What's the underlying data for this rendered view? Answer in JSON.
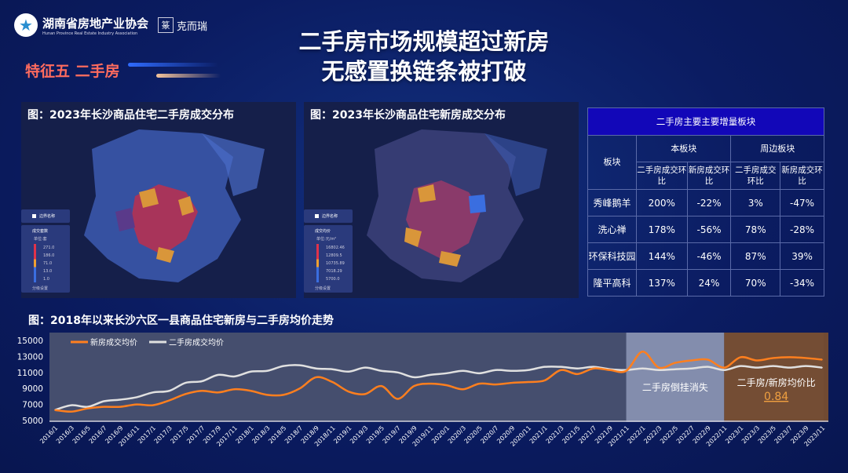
{
  "header": {
    "org_name": "湖南省房地产业协会",
    "org_name_en": "Hunan Province Real Estate Industry Association",
    "partner_seal": "䅀",
    "partner_name": "克而瑞",
    "feature": "特征五  二手房",
    "title_line1": "二手房市场规模超过新房",
    "title_line2": "无感置换链条被打破"
  },
  "maps": [
    {
      "title": "图：2023年长沙商品住宅二手房成交分布",
      "legend": {
        "toggle": "边界名称",
        "metric": "成交套数",
        "unit": "单位:套",
        "values": [
          "271.0",
          "186.0",
          "71.0",
          "13.0",
          "1.0"
        ],
        "footer": "分级设置"
      }
    },
    {
      "title": "图：2023年长沙商品住宅新房成交分布",
      "legend": {
        "toggle": "边界名称",
        "metric": "成交均价",
        "unit": "单位:元/m²",
        "values": [
          "16802.46",
          "12809.5",
          "10735.89",
          "7018.29",
          "5700.0"
        ],
        "footer": "分级设置"
      }
    }
  ],
  "table": {
    "caption": "二手房主要主要增量板块",
    "col_block": "板块",
    "group1": "本板块",
    "group2": "周边板块",
    "sub": [
      "二手房成交环比",
      "新房成交环比",
      "二手房成交环比",
      "新房成交环比"
    ],
    "rows": [
      [
        "秀峰鹅羊",
        "200%",
        "-22%",
        "3%",
        "-47%"
      ],
      [
        "洗心禅",
        "178%",
        "-56%",
        "78%",
        "-28%"
      ],
      [
        "环保科技园",
        "144%",
        "-46%",
        "87%",
        "39%"
      ],
      [
        "隆平高科",
        "137%",
        "24%",
        "70%",
        "-34%"
      ]
    ]
  },
  "chart_data": {
    "type": "line",
    "title": "图：2018年以来长沙六区一县商品住宅新房与二手房均价走势",
    "xlabel": "",
    "ylabel": "",
    "ylim": [
      5000,
      15000
    ],
    "yticks": [
      "15000",
      "13000",
      "11000",
      "9000",
      "7000",
      "5000"
    ],
    "legend_placement": "top-left",
    "grid": false,
    "categories": [
      "2016/1",
      "2016/3",
      "2016/5",
      "2016/7",
      "2016/9",
      "2016/11",
      "2017/1",
      "2017/3",
      "2017/5",
      "2017/7",
      "2017/9",
      "2017/11",
      "2018/1",
      "2018/3",
      "2018/5",
      "2018/7",
      "2018/9",
      "2018/11",
      "2019/1",
      "2019/3",
      "2019/5",
      "2019/7",
      "2019/9",
      "2019/11",
      "2020/1",
      "2020/3",
      "2020/5",
      "2020/7",
      "2020/9",
      "2020/11",
      "2021/1",
      "2021/3",
      "2021/5",
      "2021/7",
      "2021/9",
      "2021/11",
      "2022/1",
      "2022/3",
      "2022/5",
      "2022/7",
      "2022/9",
      "2022/11",
      "2023/1",
      "2023/3",
      "2023/5",
      "2023/7",
      "2023/9",
      "2023/11"
    ],
    "series": [
      {
        "name": "新房成交均价",
        "color": "#ff7f1e",
        "values": [
          6300,
          6100,
          6500,
          6700,
          6700,
          7000,
          6900,
          7500,
          8300,
          8700,
          8500,
          8900,
          8700,
          8200,
          8200,
          9000,
          10400,
          9800,
          8600,
          8300,
          9300,
          7700,
          9300,
          9600,
          9400,
          8900,
          9600,
          9500,
          9700,
          9800,
          10000,
          11300,
          10800,
          11500,
          11300,
          11200,
          13600,
          11600,
          12200,
          12500,
          12600,
          11600,
          12900,
          12500,
          12800,
          12900,
          12800,
          12600
        ]
      },
      {
        "name": "二手房成交均价",
        "color": "#e0e0e0",
        "values": [
          6300,
          6900,
          6700,
          7400,
          7600,
          7900,
          8500,
          8700,
          9700,
          9900,
          10700,
          10500,
          11100,
          11200,
          11800,
          11900,
          11500,
          11400,
          11100,
          11600,
          11200,
          11000,
          10400,
          10700,
          10900,
          11200,
          10900,
          11300,
          11200,
          11300,
          11700,
          11700,
          11500,
          11700,
          11400,
          11300,
          11500,
          11300,
          11400,
          11500,
          11700,
          11300,
          11800,
          11600,
          11800,
          11600,
          11800,
          11600
        ]
      }
    ],
    "annotations": [
      {
        "from": "2016/1",
        "to": "2021/11",
        "color": "#46506e",
        "label": ""
      },
      {
        "from": "2021/11",
        "to": "2022/11",
        "color": "#8790b0",
        "label": "二手房倒挂消失"
      },
      {
        "from": "2022/11",
        "to": "2023/11",
        "color": "#774d30",
        "label": "二手房/新房均价比",
        "value": "0.84",
        "value_color": "#f0a040"
      }
    ]
  }
}
